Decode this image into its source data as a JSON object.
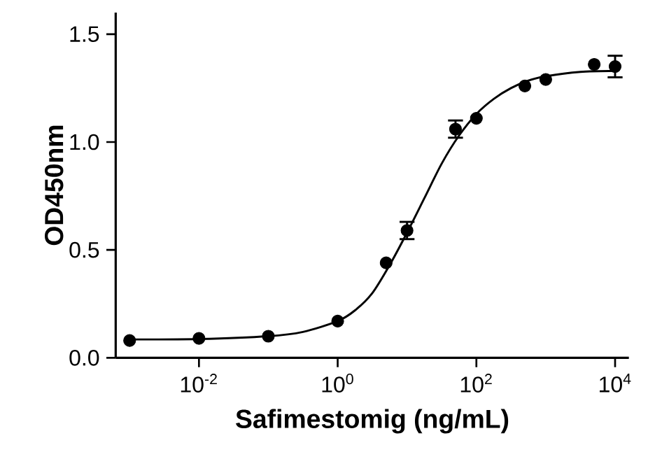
{
  "chart_data": {
    "type": "scatter",
    "xlabel": "Safimestomig (ng/mL)",
    "ylabel": "OD450nm",
    "log": "x",
    "xlim": [
      0.00063,
      15800
    ],
    "ylim": [
      0,
      1.6
    ],
    "xticks": [
      {
        "value": 0.01,
        "label": "10$^{-2}$"
      },
      {
        "value": 1,
        "label": "10$^{0}$"
      },
      {
        "value": 100,
        "label": "10$^{2}$"
      },
      {
        "value": 10000,
        "label": "10$^{4}$"
      }
    ],
    "yticks": [
      {
        "value": 0,
        "label": "0.0"
      },
      {
        "value": 0.5,
        "label": "0.5"
      },
      {
        "value": 1.0,
        "label": "1.0"
      },
      {
        "value": 1.5,
        "label": "1.5"
      }
    ],
    "grid": false,
    "series": [
      {
        "color": "#000000",
        "marker": "circle",
        "x": [
          0.001,
          0.01,
          0.1,
          1,
          5,
          10,
          50,
          100,
          500,
          1000,
          5000,
          10000
        ],
        "values": [
          0.08,
          0.09,
          0.1,
          0.17,
          0.44,
          0.59,
          1.06,
          1.11,
          1.26,
          1.29,
          1.36,
          1.35
        ],
        "errors": [
          null,
          null,
          null,
          null,
          null,
          0.04,
          0.04,
          null,
          null,
          null,
          null,
          0.05
        ]
      },
      {
        "type": "line",
        "color": "#000000",
        "marker": "none",
        "line_style": "solid",
        "x": [
          0.001,
          0.01,
          0.1,
          0.316,
          1,
          1.78,
          3.16,
          5.62,
          10,
          17.8,
          31.6,
          56.2,
          100,
          178,
          316,
          562,
          1000,
          3160,
          10000
        ],
        "values": [
          0.085,
          0.087,
          0.1,
          0.12,
          0.17,
          0.22,
          0.3,
          0.43,
          0.58,
          0.74,
          0.9,
          1.03,
          1.13,
          1.2,
          1.25,
          1.285,
          1.305,
          1.325,
          1.33
        ]
      }
    ]
  }
}
